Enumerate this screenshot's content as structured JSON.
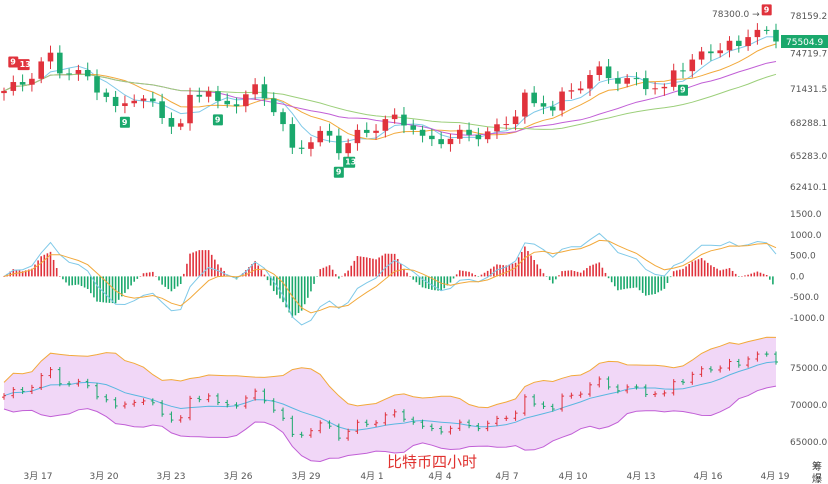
{
  "chart_data": {
    "type": "candlestick",
    "title": "比特币四小时",
    "colors": {
      "up": "#e0323c",
      "down": "#1aa86c",
      "ma1": "#7fc9e8",
      "ma2": "#f2a93b",
      "ma3": "#c15fd6",
      "ma4": "#9ccf7a",
      "boll_fill": "#f1d7f7",
      "boll_upper": "#f2a93b",
      "boll_lower": "#c15fd6",
      "boll_mid": "#5ab7e0"
    },
    "x_labels": [
      "3月 17",
      "3月 20",
      "3月 23",
      "3月 26",
      "3月 29",
      "4月 1",
      "4月 4",
      "4月 7",
      "4月 10",
      "4月 13",
      "4月 16",
      "4月 19"
    ],
    "right_label_a": "筹",
    "right_label_b": "爆",
    "price_axis": [
      "78159.2",
      "74719.7",
      "71431.5",
      "68288.1",
      "65283.0",
      "62410.1"
    ],
    "price_range": [
      62410.1,
      78159.2
    ],
    "high_mark": {
      "text": "78300.0 →",
      "value": 78300.0
    },
    "current_price": "75504.9",
    "macd_axis": [
      "1500.0",
      "1000.0",
      "500.0",
      "0.0",
      "-500.0",
      "-1000.0"
    ],
    "macd_range": [
      -1000,
      1500
    ],
    "boll_axis": [
      "75000.0",
      "70000.0",
      "65000.0"
    ],
    "boll_range": [
      65000,
      75000
    ],
    "price_path": [
      [
        0,
        71000
      ],
      [
        2,
        72000
      ],
      [
        4,
        74000
      ],
      [
        5,
        74500
      ],
      [
        6,
        73000
      ],
      [
        9,
        72500
      ],
      [
        11,
        71000
      ],
      [
        12,
        69500
      ],
      [
        14,
        70500
      ],
      [
        16,
        70000
      ],
      [
        18,
        68500
      ],
      [
        19,
        68000
      ],
      [
        20,
        70500
      ],
      [
        22,
        71200
      ],
      [
        23,
        70000
      ],
      [
        25,
        70500
      ],
      [
        27,
        71300
      ],
      [
        28,
        70500
      ],
      [
        29,
        69500
      ],
      [
        30,
        68000
      ],
      [
        31,
        66000
      ],
      [
        32,
        66500
      ],
      [
        34,
        67000
      ],
      [
        35,
        66800
      ],
      [
        36,
        65800
      ],
      [
        37,
        66500
      ],
      [
        38,
        67500
      ],
      [
        40,
        68000
      ],
      [
        42,
        68500
      ],
      [
        44,
        68000
      ],
      [
        45,
        67000
      ],
      [
        47,
        66800
      ],
      [
        48,
        66700
      ],
      [
        49,
        67000
      ],
      [
        51,
        67300
      ],
      [
        52,
        67600
      ],
      [
        54,
        68500
      ],
      [
        55,
        69000
      ],
      [
        56,
        70500
      ],
      [
        57,
        69800
      ],
      [
        58,
        70300
      ],
      [
        59,
        69800
      ],
      [
        60,
        71000
      ],
      [
        62,
        71700
      ],
      [
        64,
        73000
      ],
      [
        66,
        72500
      ],
      [
        68,
        72200
      ],
      [
        69,
        71600
      ],
      [
        70,
        71400
      ],
      [
        71,
        71100
      ],
      [
        72,
        73200
      ],
      [
        74,
        74300
      ],
      [
        76,
        74700
      ],
      [
        78,
        75500
      ],
      [
        79,
        75200
      ],
      [
        80,
        76800
      ],
      [
        81,
        77300
      ],
      [
        82,
        76500
      ],
      [
        83,
        75500
      ]
    ],
    "td_marks": [
      {
        "text": "9",
        "i": 1,
        "type": "sell"
      },
      {
        "text": "13",
        "i": 2,
        "type": "sell"
      },
      {
        "text": "9",
        "i": 13,
        "type": "buy"
      },
      {
        "text": "9",
        "i": 23,
        "type": "buy"
      },
      {
        "text": "9",
        "i": 36,
        "type": "buy"
      },
      {
        "text": "13",
        "i": 37,
        "type": "buy"
      },
      {
        "text": "9",
        "i": 73,
        "type": "buy"
      },
      {
        "text": "9",
        "i": 82,
        "type": "sell"
      }
    ]
  }
}
